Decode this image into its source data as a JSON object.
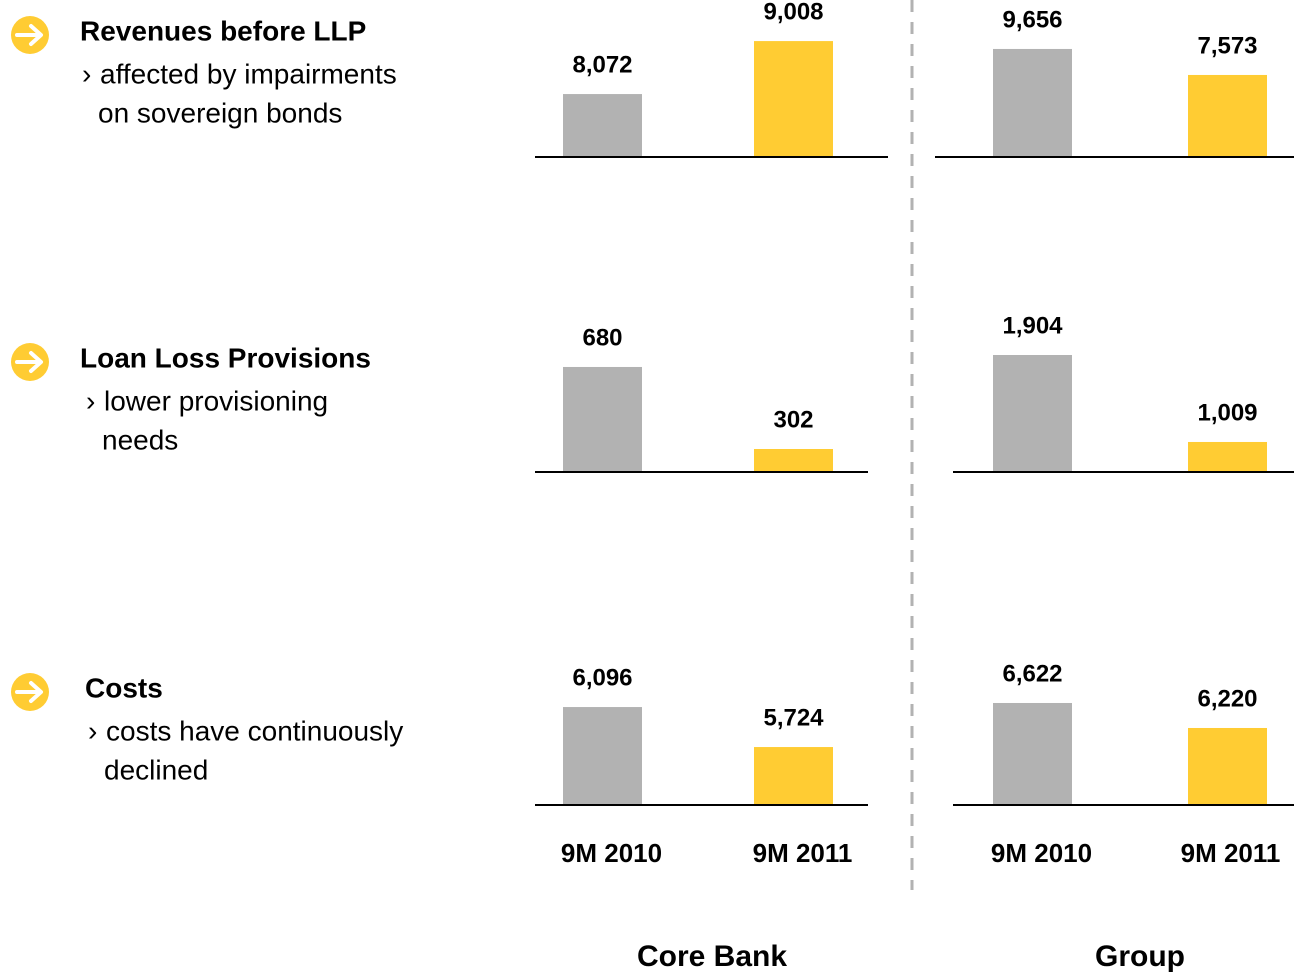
{
  "rows": [
    {
      "title": "Revenues before LLP",
      "note_lines": [
        "affected by impairments",
        "on sovereign bonds"
      ]
    },
    {
      "title": "Loan Loss Provisions",
      "note_lines": [
        "lower provisioning",
        "needs"
      ]
    },
    {
      "title": "Costs",
      "note_lines": [
        "costs have continuously",
        "declined"
      ]
    }
  ],
  "columns": [
    "Core Bank",
    "Group"
  ],
  "chart_data": [
    {
      "type": "bar",
      "values": [
        8072,
        9008
      ],
      "value_labels": [
        "8,072",
        "9,008"
      ],
      "colors": [
        "#b2b2b2",
        "#ffcc33"
      ],
      "ylim": [
        6960,
        9080
      ]
    },
    {
      "type": "bar",
      "values": [
        9656,
        7573
      ],
      "value_labels": [
        "9,656",
        "7,573"
      ],
      "colors": [
        "#b2b2b2",
        "#ffcc33"
      ],
      "ylim": [
        1000,
        10615
      ]
    },
    {
      "type": "bar",
      "values": [
        680,
        302
      ],
      "value_labels": [
        "680",
        "302"
      ],
      "colors": [
        "#b2b2b2",
        "#ffcc33"
      ],
      "ylim": [
        196,
        749
      ]
    },
    {
      "type": "bar",
      "values": [
        1904,
        1009
      ],
      "value_labels": [
        "1,904",
        "1,009"
      ],
      "colors": [
        "#b2b2b2",
        "#ffcc33"
      ],
      "ylim": [
        700,
        1935
      ]
    },
    {
      "type": "bar",
      "categories": [
        "9M 2010",
        "9M 2011"
      ],
      "values": [
        6096,
        5724
      ],
      "value_labels": [
        "6,096",
        "5,724"
      ],
      "colors": [
        "#b2b2b2",
        "#ffcc33"
      ],
      "ylim": [
        5185,
        6301
      ]
    },
    {
      "type": "bar",
      "categories": [
        "9M 2010",
        "9M 2011"
      ],
      "values": [
        6622,
        6220
      ],
      "value_labels": [
        "6,622",
        "6,220"
      ],
      "colors": [
        "#b2b2b2",
        "#ffcc33"
      ],
      "ylim": [
        4982,
        6911
      ]
    }
  ]
}
